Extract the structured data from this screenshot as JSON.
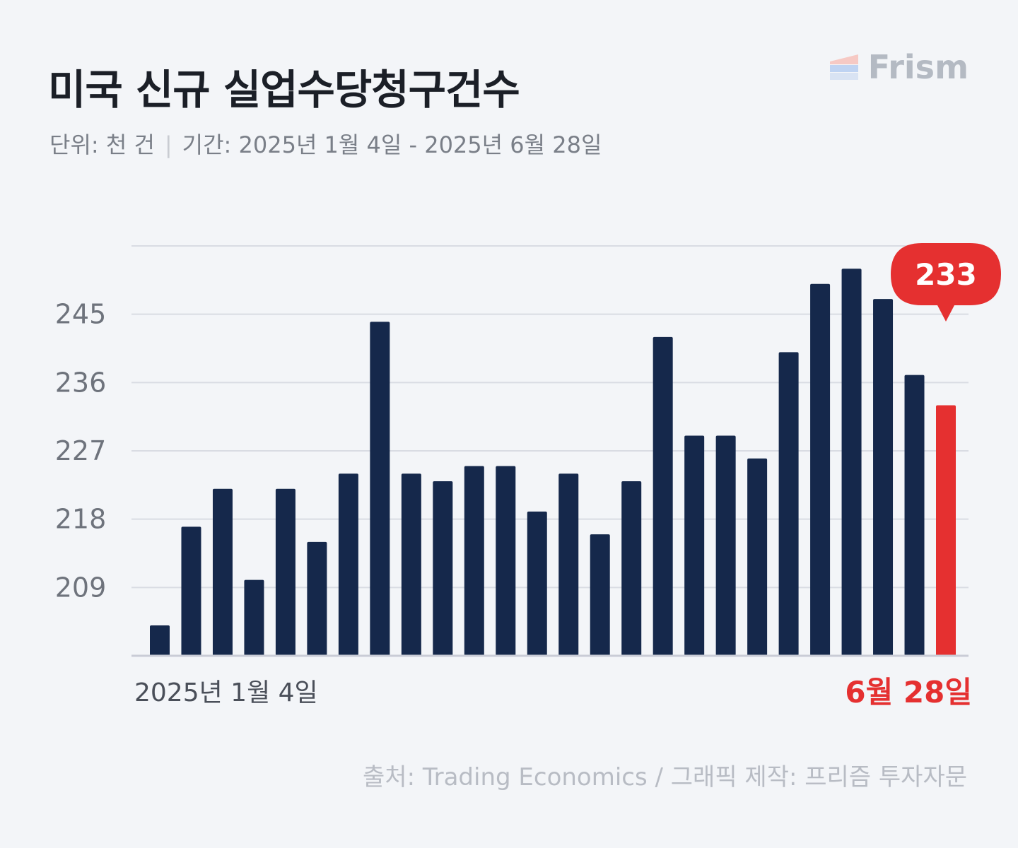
{
  "header": {
    "title": "미국 신규 실업수당청구건수",
    "subtitle_unit": "단위: 천 건",
    "subtitle_divider": "|",
    "subtitle_period": "기간: 2025년 1월 4일 - 2025년 6월 28일"
  },
  "logo": {
    "text": "Frism",
    "icon": "frism-logo-icon"
  },
  "chart_data": {
    "type": "bar",
    "title": "미국 신규 실업수당청구건수",
    "ylabel": "",
    "xlabel": "",
    "yticks": [
      209,
      218,
      227,
      236,
      245
    ],
    "ylim": [
      200,
      254
    ],
    "values": [
      204,
      217,
      222,
      210,
      222,
      215,
      224,
      244,
      224,
      223,
      225,
      225,
      219,
      224,
      216,
      223,
      242,
      229,
      229,
      226,
      240,
      249,
      251,
      247,
      237,
      233
    ],
    "x_start_label": "2025년 1월 4일",
    "x_end_label": "6월 28일",
    "highlight_value_label": "233",
    "grid": true,
    "colors": {
      "bar": "#15284b",
      "highlight": "#e53030",
      "grid": "#d9dce3",
      "axis": "#c9ccd6"
    }
  },
  "footer": {
    "source": "출처: Trading Economics  / 그래픽 제작: 프리즘 투자자문"
  }
}
